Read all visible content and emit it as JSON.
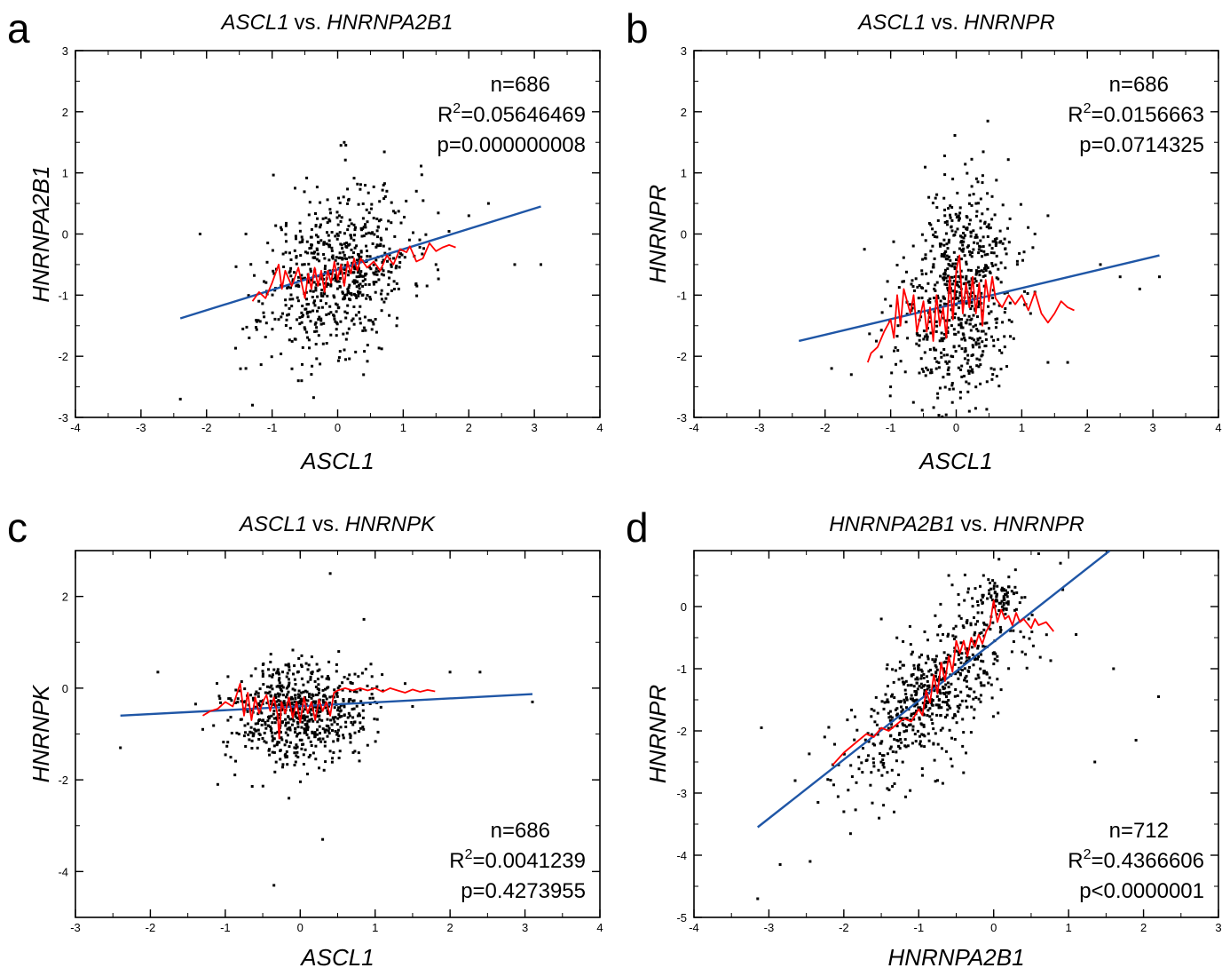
{
  "chart_data": [
    {
      "type": "scatter",
      "panel_letter": "a",
      "title_gene_x": "ASCL1",
      "title_vs": "vs.",
      "title_gene_y": "HNRNPA2B1",
      "xlabel": "ASCL1",
      "ylabel": "HNRNPA2B1",
      "xlim": [
        -4,
        4
      ],
      "ylim": [
        -3,
        3
      ],
      "xticks": [
        -4,
        -3,
        -2,
        -1,
        0,
        1,
        2,
        3,
        4
      ],
      "yticks": [
        -3,
        -2,
        -1,
        0,
        1,
        2,
        3
      ],
      "stats": {
        "n": "n=686",
        "r2_prefix": "R",
        "r2_sup": "2",
        "r2_value": "=0.05646469",
        "p": "p=0.000000008"
      },
      "stats_position": "top-right",
      "regression_line": {
        "x": [
          -2.4,
          3.1
        ],
        "y": [
          -1.38,
          0.45
        ],
        "color": "#1f56a6"
      },
      "smooth_curve": {
        "color": "#ff0000",
        "points": [
          [
            -1.3,
            -1.1
          ],
          [
            -1.2,
            -0.95
          ],
          [
            -1.1,
            -1.05
          ],
          [
            -1.0,
            -0.8
          ],
          [
            -0.9,
            -0.5
          ],
          [
            -0.85,
            -0.9
          ],
          [
            -0.8,
            -0.6
          ],
          [
            -0.7,
            -0.85
          ],
          [
            -0.6,
            -0.55
          ],
          [
            -0.5,
            -1.05
          ],
          [
            -0.45,
            -0.65
          ],
          [
            -0.4,
            -0.9
          ],
          [
            -0.35,
            -0.55
          ],
          [
            -0.3,
            -0.85
          ],
          [
            -0.25,
            -0.6
          ],
          [
            -0.2,
            -0.95
          ],
          [
            -0.15,
            -0.6
          ],
          [
            -0.1,
            -0.8
          ],
          [
            -0.05,
            -0.45
          ],
          [
            0.0,
            -0.75
          ],
          [
            0.05,
            -0.5
          ],
          [
            0.1,
            -0.85
          ],
          [
            0.15,
            -0.45
          ],
          [
            0.2,
            -0.65
          ],
          [
            0.25,
            -0.4
          ],
          [
            0.3,
            -0.6
          ],
          [
            0.35,
            -0.4
          ],
          [
            0.45,
            -0.55
          ],
          [
            0.55,
            -0.45
          ],
          [
            0.65,
            -0.6
          ],
          [
            0.75,
            -0.35
          ],
          [
            0.85,
            -0.5
          ],
          [
            0.95,
            -0.25
          ],
          [
            1.05,
            -0.3
          ],
          [
            1.1,
            -0.2
          ],
          [
            1.2,
            -0.45
          ],
          [
            1.3,
            -0.4
          ],
          [
            1.4,
            -0.15
          ],
          [
            1.5,
            -0.28
          ],
          [
            1.6,
            -0.22
          ],
          [
            1.7,
            -0.18
          ],
          [
            1.8,
            -0.22
          ]
        ]
      },
      "scatter": {
        "n": 686,
        "mean_x": 0.0,
        "sd_x": 0.55,
        "mean_y": -0.6,
        "sd_y": 0.65,
        "slope": 0.33,
        "clusters": [],
        "seed": 11,
        "outliers": [
          [
            -2.4,
            -2.7
          ],
          [
            -2.1,
            0.0
          ],
          [
            -1.3,
            -2.8
          ],
          [
            -1.35,
            -1.7
          ],
          [
            -1.4,
            -2.2
          ],
          [
            2.3,
            0.5
          ],
          [
            2.7,
            -0.5
          ],
          [
            3.1,
            -0.5
          ],
          [
            2.0,
            0.3
          ],
          [
            1.2,
            0.7
          ],
          [
            0.1,
            1.5
          ],
          [
            0.05,
            1.45
          ],
          [
            -0.65,
            0.75
          ],
          [
            0.7,
            0.8
          ],
          [
            0.75,
            0.7
          ],
          [
            1.5,
            -0.5
          ],
          [
            -1.4,
            0.0
          ],
          [
            0.9,
            -1.5
          ],
          [
            -0.55,
            -2.4
          ]
        ]
      }
    },
    {
      "type": "scatter",
      "panel_letter": "b",
      "title_gene_x": "ASCL1",
      "title_vs": "vs.",
      "title_gene_y": "HNRNPR",
      "xlabel": "ASCL1",
      "ylabel": "HNRNPR",
      "xlim": [
        -4,
        4
      ],
      "ylim": [
        -3,
        3
      ],
      "xticks": [
        -4,
        -3,
        -2,
        -1,
        0,
        1,
        2,
        3,
        4
      ],
      "yticks": [
        -3,
        -2,
        -1,
        0,
        1,
        2,
        3
      ],
      "stats": {
        "n": "n=686",
        "r2_prefix": "R",
        "r2_sup": "2",
        "r2_value": "=0.0156663",
        "p": "p=0.0714325"
      },
      "stats_position": "top-right",
      "regression_line": {
        "x": [
          -2.4,
          3.1
        ],
        "y": [
          -1.75,
          -0.35
        ],
        "color": "#1f56a6"
      },
      "smooth_curve": {
        "color": "#ff0000",
        "points": [
          [
            -1.35,
            -2.1
          ],
          [
            -1.3,
            -1.95
          ],
          [
            -1.2,
            -1.85
          ],
          [
            -1.1,
            -1.6
          ],
          [
            -1.0,
            -1.4
          ],
          [
            -0.95,
            -1.7
          ],
          [
            -0.9,
            -1.0
          ],
          [
            -0.85,
            -1.5
          ],
          [
            -0.8,
            -0.9
          ],
          [
            -0.7,
            -1.3
          ],
          [
            -0.65,
            -1.0
          ],
          [
            -0.6,
            -1.6
          ],
          [
            -0.5,
            -1.1
          ],
          [
            -0.45,
            -1.6
          ],
          [
            -0.4,
            -1.2
          ],
          [
            -0.35,
            -1.75
          ],
          [
            -0.3,
            -1.0
          ],
          [
            -0.25,
            -1.5
          ],
          [
            -0.2,
            -1.2
          ],
          [
            -0.15,
            -1.7
          ],
          [
            -0.1,
            -0.7
          ],
          [
            -0.05,
            -1.4
          ],
          [
            0.0,
            -0.6
          ],
          [
            0.05,
            -0.35
          ],
          [
            0.1,
            -1.3
          ],
          [
            0.15,
            -0.8
          ],
          [
            0.2,
            -1.2
          ],
          [
            0.25,
            -0.7
          ],
          [
            0.3,
            -1.3
          ],
          [
            0.35,
            -0.8
          ],
          [
            0.4,
            -1.5
          ],
          [
            0.45,
            -0.75
          ],
          [
            0.5,
            -1.1
          ],
          [
            0.55,
            -0.7
          ],
          [
            0.6,
            -1.05
          ],
          [
            0.7,
            -1.2
          ],
          [
            0.8,
            -1.0
          ],
          [
            0.9,
            -1.15
          ],
          [
            1.0,
            -1.0
          ],
          [
            1.1,
            -1.25
          ],
          [
            1.2,
            -0.95
          ],
          [
            1.3,
            -1.3
          ],
          [
            1.4,
            -1.45
          ],
          [
            1.5,
            -1.3
          ],
          [
            1.6,
            -1.1
          ],
          [
            1.7,
            -1.2
          ],
          [
            1.8,
            -1.25
          ]
        ]
      },
      "scatter": {
        "n": 686,
        "mean_x": 0.0,
        "sd_x": 0.45,
        "mean_y": -1.15,
        "sd_y": 0.9,
        "slope": 0.3,
        "clusters": [
          [
            0.1,
            0.1,
            0.22,
            0.25,
            60
          ]
        ],
        "seed": 23,
        "outliers": [
          [
            -1.9,
            -2.2
          ],
          [
            -1.6,
            -2.3
          ],
          [
            -1.4,
            -0.25
          ],
          [
            2.2,
            -0.5
          ],
          [
            2.5,
            -0.7
          ],
          [
            2.8,
            -0.9
          ],
          [
            3.1,
            -0.7
          ],
          [
            1.7,
            -2.1
          ],
          [
            1.4,
            -2.1
          ],
          [
            1.4,
            0.3
          ],
          [
            1.2,
            0.0
          ],
          [
            1.2,
            -0.95
          ],
          [
            0.2,
            -2.9
          ],
          [
            -1.0,
            -2.5
          ]
        ]
      }
    },
    {
      "type": "scatter",
      "panel_letter": "c",
      "title_gene_x": "ASCL1",
      "title_vs": "vs.",
      "title_gene_y": "HNRNPK",
      "xlabel": "ASCL1",
      "ylabel": "HNRNPK",
      "xlim": [
        -3,
        4
      ],
      "ylim": [
        -5,
        3
      ],
      "xticks": [
        -3,
        -2,
        -1,
        0,
        1,
        2,
        3,
        4
      ],
      "yticks": [
        -4,
        -2,
        0,
        2
      ],
      "stats": {
        "n": "n=686",
        "r2_prefix": "R",
        "r2_sup": "2",
        "r2_value": "=0.0041239",
        "p": "p=0.4273955"
      },
      "stats_position": "bottom-right",
      "regression_line": {
        "x": [
          -2.4,
          3.1
        ],
        "y": [
          -0.6,
          -0.13
        ],
        "color": "#1f56a6"
      },
      "smooth_curve": {
        "color": "#ff0000",
        "points": [
          [
            -1.3,
            -0.6
          ],
          [
            -1.2,
            -0.5
          ],
          [
            -1.1,
            -0.45
          ],
          [
            -1.0,
            -0.3
          ],
          [
            -0.9,
            -0.4
          ],
          [
            -0.8,
            0.1
          ],
          [
            -0.75,
            -0.6
          ],
          [
            -0.7,
            -0.1
          ],
          [
            -0.65,
            -0.7
          ],
          [
            -0.6,
            -0.2
          ],
          [
            -0.55,
            -0.55
          ],
          [
            -0.5,
            -0.3
          ],
          [
            -0.45,
            -0.15
          ],
          [
            -0.4,
            -0.5
          ],
          [
            -0.35,
            -0.2
          ],
          [
            -0.3,
            -0.6
          ],
          [
            -0.28,
            -1.1
          ],
          [
            -0.25,
            -0.3
          ],
          [
            -0.2,
            -0.55
          ],
          [
            -0.15,
            -0.2
          ],
          [
            -0.1,
            -0.65
          ],
          [
            -0.05,
            -0.3
          ],
          [
            0.0,
            -0.75
          ],
          [
            0.05,
            -0.2
          ],
          [
            0.1,
            -0.55
          ],
          [
            0.15,
            -0.3
          ],
          [
            0.2,
            -0.7
          ],
          [
            0.25,
            -0.25
          ],
          [
            0.3,
            -0.5
          ],
          [
            0.35,
            -0.3
          ],
          [
            0.4,
            -0.6
          ],
          [
            0.45,
            -0.1
          ],
          [
            0.5,
            -0.05
          ],
          [
            0.6,
            0.0
          ],
          [
            0.7,
            -0.05
          ],
          [
            0.8,
            0.0
          ],
          [
            0.9,
            -0.05
          ],
          [
            1.0,
            0.0
          ],
          [
            1.1,
            -0.08
          ],
          [
            1.2,
            0.0
          ],
          [
            1.3,
            -0.05
          ],
          [
            1.4,
            -0.1
          ],
          [
            1.5,
            -0.03
          ],
          [
            1.6,
            -0.08
          ],
          [
            1.7,
            -0.04
          ],
          [
            1.8,
            -0.07
          ]
        ]
      },
      "scatter": {
        "n": 686,
        "mean_x": 0.0,
        "sd_x": 0.45,
        "mean_y": -0.5,
        "sd_y": 0.55,
        "slope": 0.05,
        "clusters": [],
        "seed": 37,
        "outliers": [
          [
            -2.4,
            -1.3
          ],
          [
            -1.9,
            0.35
          ],
          [
            -1.3,
            -0.9
          ],
          [
            -1.1,
            -2.1
          ],
          [
            0.4,
            2.5
          ],
          [
            0.85,
            1.5
          ],
          [
            2.0,
            0.35
          ],
          [
            2.4,
            0.35
          ],
          [
            3.1,
            -0.3
          ],
          [
            -0.35,
            -4.3
          ],
          [
            0.3,
            -3.3
          ],
          [
            1.5,
            -0.4
          ],
          [
            1.4,
            0.1
          ],
          [
            -0.15,
            -2.4
          ]
        ]
      }
    },
    {
      "type": "scatter",
      "panel_letter": "d",
      "title_gene_x": "HNRNPA2B1",
      "title_vs": "vs.",
      "title_gene_y": "HNRNPR",
      "xlabel": "HNRNPA2B1",
      "ylabel": "HNRNPR",
      "xlim": [
        -4,
        3
      ],
      "ylim": [
        -5,
        0.9
      ],
      "xticks": [
        -4,
        -3,
        -2,
        -1,
        0,
        1,
        2,
        3
      ],
      "yticks": [
        -5,
        -4,
        -3,
        -2,
        -1,
        0
      ],
      "stats": {
        "n": "n=712",
        "r2_prefix": "R",
        "r2_sup": "2",
        "r2_value": "=0.4366606",
        "p": "p<0.0000001"
      },
      "stats_position": "bottom-right",
      "regression_line": {
        "x": [
          -3.15,
          1.55
        ],
        "y": [
          -3.55,
          0.9
        ],
        "color": "#1f56a6"
      },
      "smooth_curve": {
        "color": "#ff0000",
        "points": [
          [
            -2.15,
            -2.55
          ],
          [
            -2.0,
            -2.35
          ],
          [
            -1.9,
            -2.25
          ],
          [
            -1.8,
            -2.15
          ],
          [
            -1.7,
            -2.05
          ],
          [
            -1.6,
            -2.1
          ],
          [
            -1.5,
            -1.95
          ],
          [
            -1.4,
            -2.0
          ],
          [
            -1.3,
            -1.9
          ],
          [
            -1.2,
            -1.8
          ],
          [
            -1.1,
            -1.85
          ],
          [
            -1.0,
            -1.65
          ],
          [
            -0.95,
            -1.75
          ],
          [
            -0.9,
            -1.35
          ],
          [
            -0.85,
            -1.55
          ],
          [
            -0.8,
            -1.1
          ],
          [
            -0.75,
            -1.4
          ],
          [
            -0.7,
            -0.9
          ],
          [
            -0.65,
            -1.2
          ],
          [
            -0.6,
            -0.8
          ],
          [
            -0.55,
            -1.05
          ],
          [
            -0.5,
            -0.55
          ],
          [
            -0.45,
            -0.75
          ],
          [
            -0.4,
            -0.55
          ],
          [
            -0.35,
            -0.8
          ],
          [
            -0.3,
            -0.5
          ],
          [
            -0.25,
            -0.65
          ],
          [
            -0.2,
            -0.45
          ],
          [
            -0.15,
            -0.6
          ],
          [
            -0.1,
            -0.4
          ],
          [
            -0.05,
            -0.3
          ],
          [
            0.0,
            0.1
          ],
          [
            0.05,
            -0.25
          ],
          [
            0.1,
            -0.05
          ],
          [
            0.15,
            -0.2
          ],
          [
            0.2,
            -0.15
          ],
          [
            0.25,
            -0.3
          ],
          [
            0.3,
            -0.1
          ],
          [
            0.35,
            -0.25
          ],
          [
            0.4,
            -0.2
          ],
          [
            0.5,
            -0.35
          ],
          [
            0.55,
            -0.2
          ],
          [
            0.6,
            -0.3
          ],
          [
            0.7,
            -0.25
          ],
          [
            0.8,
            -0.4
          ]
        ]
      },
      "scatter": {
        "n": 712,
        "mean_x": -0.75,
        "sd_x": 0.6,
        "mean_y": -1.35,
        "sd_y": 0.55,
        "slope": 0.95,
        "clusters": [
          [
            0.05,
            0.15,
            0.15,
            0.15,
            70
          ]
        ],
        "seed": 53,
        "outliers": [
          [
            -3.15,
            -4.7
          ],
          [
            -3.1,
            -1.95
          ],
          [
            -2.85,
            -4.15
          ],
          [
            -2.45,
            -4.1
          ],
          [
            -2.65,
            -2.8
          ],
          [
            -2.0,
            -3.3
          ],
          [
            1.6,
            -1.0
          ],
          [
            1.9,
            -2.15
          ],
          [
            2.2,
            -1.45
          ],
          [
            1.35,
            -2.5
          ],
          [
            1.1,
            -0.45
          ],
          [
            -1.5,
            -0.2
          ],
          [
            -0.6,
            0.5
          ],
          [
            0.6,
            0.85
          ]
        ]
      }
    }
  ]
}
